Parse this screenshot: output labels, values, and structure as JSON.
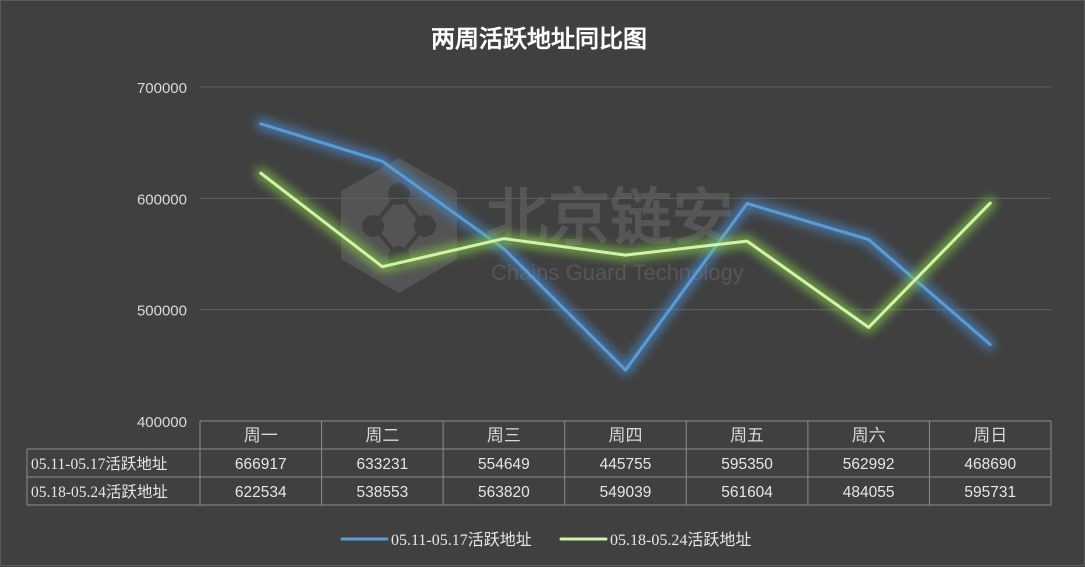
{
  "chart_data": {
    "type": "line",
    "title": "两周活跃地址同比图",
    "categories": [
      "周一",
      "周二",
      "周三",
      "周四",
      "周五",
      "周六",
      "周日"
    ],
    "y_ticks": [
      "700000",
      "600000",
      "500000",
      "400000"
    ],
    "ylim": [
      400000,
      700000
    ],
    "grid": true,
    "legend_position": "bottom",
    "data_table": true,
    "series": [
      {
        "name": "05.11-05.17活跃地址",
        "color": "#5b9bd5",
        "glow": "#4a86c6",
        "values": [
          666917,
          633231,
          554649,
          445755,
          595350,
          562992,
          468690
        ],
        "labels": [
          "666917",
          "633231",
          "554649",
          "445755",
          "595350",
          "562992",
          "468690"
        ]
      },
      {
        "name": "05.18-05.24活跃地址",
        "color": "#d3f2a7",
        "glow": "#82c84c",
        "values": [
          622534,
          538553,
          563820,
          549039,
          561604,
          484055,
          595731
        ],
        "labels": [
          "622534",
          "538553",
          "563820",
          "549039",
          "561604",
          "484055",
          "595731"
        ]
      }
    ]
  },
  "watermark": {
    "text_cn": "北京链安",
    "text_en": "Chains Guard Technology"
  }
}
